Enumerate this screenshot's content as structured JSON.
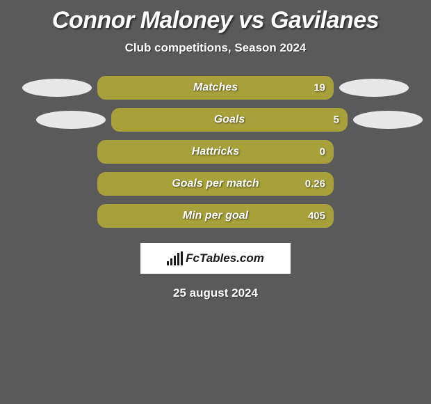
{
  "title": "Connor Maloney vs Gavilanes",
  "subtitle": "Club competitions, Season 2024",
  "date": "25 august 2024",
  "logo_text": "FcTables.com",
  "background_color": "#5a5a5a",
  "bar_color": "#a8a03a",
  "ellipse_color": "#e8e8e8",
  "text_color": "#ffffff",
  "logo_bg": "#ffffff",
  "logo_fg": "#1a1a1a",
  "stats": [
    {
      "label": "Matches",
      "value": "19",
      "width_pct": 100,
      "left_ellipse": true,
      "right_ellipse": true
    },
    {
      "label": "Goals",
      "value": "5",
      "width_pct": 100,
      "left_ellipse": true,
      "right_ellipse": true
    },
    {
      "label": "Hattricks",
      "value": "0",
      "width_pct": 100,
      "left_ellipse": false,
      "right_ellipse": false
    },
    {
      "label": "Goals per match",
      "value": "0.26",
      "width_pct": 100,
      "left_ellipse": false,
      "right_ellipse": false
    },
    {
      "label": "Min per goal",
      "value": "405",
      "width_pct": 100,
      "left_ellipse": false,
      "right_ellipse": false
    }
  ]
}
